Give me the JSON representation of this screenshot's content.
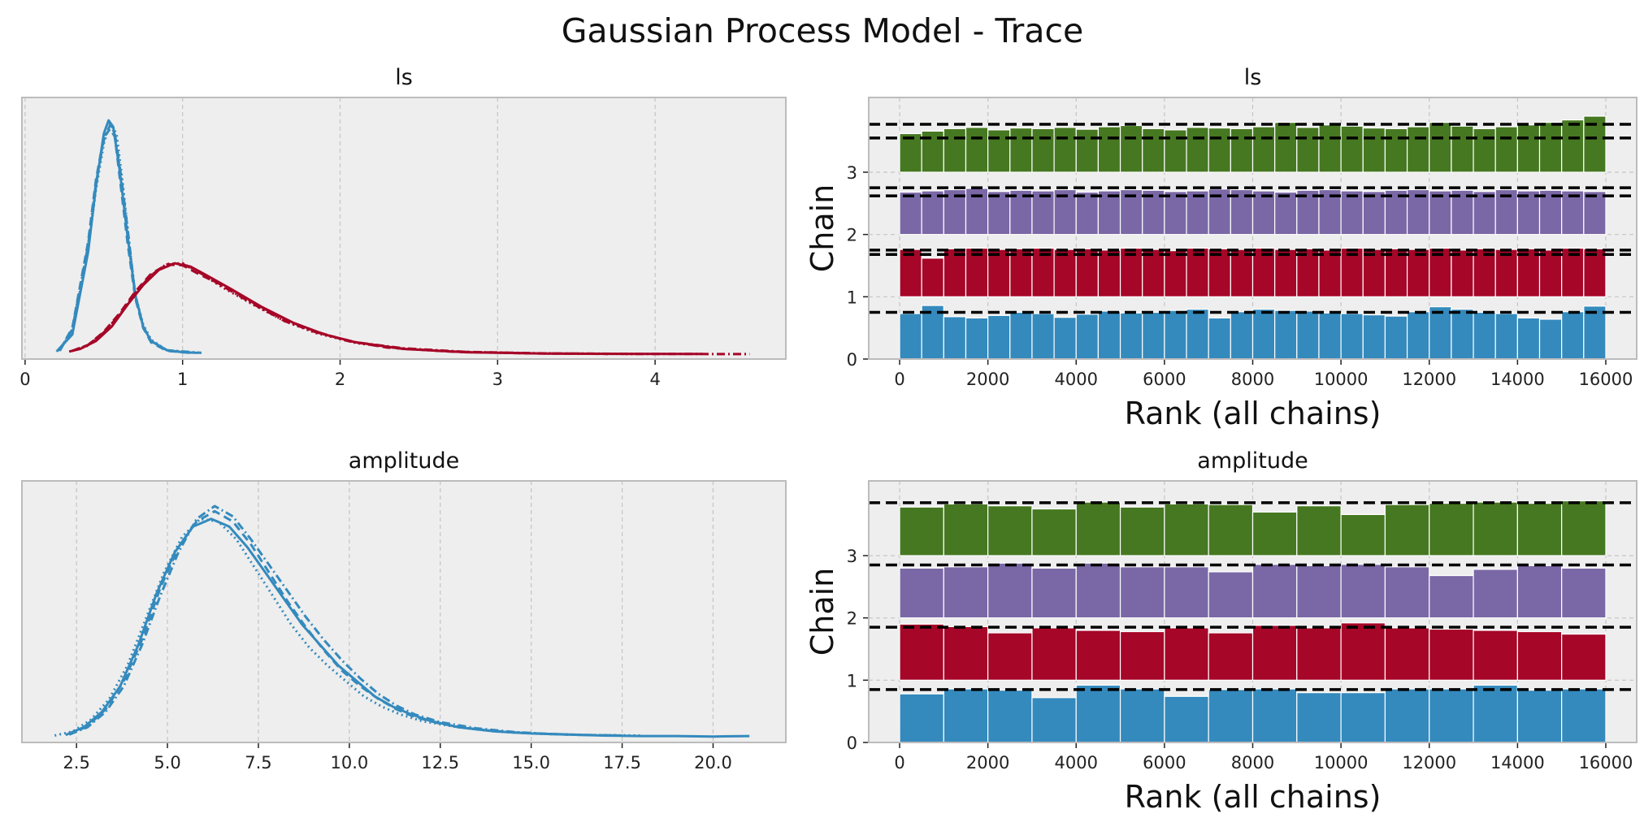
{
  "figure": {
    "title": "Gaussian Process Model - Trace"
  },
  "colors": {
    "panel_bg": "#eeeeee",
    "grid": "#c4c4c4",
    "frame": "#bcbcbc",
    "chain0": "#348abd",
    "chain1": "#a60628",
    "chain2": "#7a68a6",
    "chain3": "#467821",
    "ref_line": "#000000"
  },
  "chart_data": [
    {
      "type": "line",
      "title": "ls",
      "xlim": [
        -0.02,
        4.83
      ],
      "xticks": [
        0,
        1,
        2,
        3,
        4
      ],
      "xtick_labels": [
        "0",
        "1",
        "2",
        "3",
        "4"
      ],
      "grid": true,
      "series": [
        {
          "color": "#348abd",
          "dash": "solid",
          "x": [
            0.2,
            0.3,
            0.4,
            0.45,
            0.5,
            0.53,
            0.56,
            0.6,
            0.65,
            0.7,
            0.75,
            0.8,
            0.9,
            1.0,
            1.1
          ],
          "y": [
            0.04,
            0.3,
            1.55,
            2.55,
            3.35,
            3.55,
            3.45,
            2.8,
            1.8,
            0.9,
            0.42,
            0.2,
            0.06,
            0.03,
            0.02
          ]
        },
        {
          "color": "#348abd",
          "dash": "dashed",
          "x": [
            0.22,
            0.3,
            0.4,
            0.45,
            0.5,
            0.54,
            0.57,
            0.6,
            0.65,
            0.7,
            0.75,
            0.8,
            0.9,
            1.05
          ],
          "y": [
            0.06,
            0.4,
            1.7,
            2.65,
            3.3,
            3.42,
            3.3,
            2.7,
            1.7,
            0.85,
            0.4,
            0.18,
            0.05,
            0.02
          ]
        },
        {
          "color": "#348abd",
          "dash": "dotted",
          "x": [
            0.21,
            0.3,
            0.4,
            0.45,
            0.5,
            0.54,
            0.58,
            0.62,
            0.66,
            0.7,
            0.75,
            0.8,
            0.9,
            1.05
          ],
          "y": [
            0.05,
            0.35,
            1.6,
            2.5,
            3.2,
            3.5,
            3.35,
            2.6,
            1.7,
            0.9,
            0.45,
            0.22,
            0.06,
            0.02
          ]
        },
        {
          "color": "#348abd",
          "dash": "dashdot",
          "x": [
            0.22,
            0.3,
            0.4,
            0.45,
            0.5,
            0.54,
            0.57,
            0.61,
            0.66,
            0.7,
            0.75,
            0.8,
            0.9,
            1.12
          ],
          "y": [
            0.05,
            0.38,
            1.65,
            2.6,
            3.25,
            3.48,
            3.35,
            2.7,
            1.72,
            0.88,
            0.42,
            0.2,
            0.06,
            0.02
          ]
        },
        {
          "color": "#a60628",
          "dash": "solid",
          "x": [
            0.28,
            0.35,
            0.45,
            0.55,
            0.65,
            0.75,
            0.85,
            0.95,
            1.05,
            1.15,
            1.3,
            1.5,
            1.7,
            1.9,
            2.1,
            2.4,
            2.8,
            3.3,
            3.8,
            4.3
          ],
          "y": [
            0.04,
            0.08,
            0.2,
            0.42,
            0.75,
            1.05,
            1.28,
            1.38,
            1.33,
            1.2,
            1.0,
            0.72,
            0.48,
            0.3,
            0.18,
            0.08,
            0.03,
            0.01,
            0.005,
            0.002
          ]
        },
        {
          "color": "#a60628",
          "dash": "dashed",
          "x": [
            0.3,
            0.4,
            0.5,
            0.6,
            0.7,
            0.8,
            0.9,
            1.0,
            1.1,
            1.25,
            1.45,
            1.65,
            1.85,
            2.05,
            2.3,
            2.7,
            3.2,
            3.7
          ],
          "y": [
            0.05,
            0.14,
            0.34,
            0.62,
            0.95,
            1.22,
            1.36,
            1.35,
            1.22,
            1.05,
            0.78,
            0.52,
            0.34,
            0.2,
            0.1,
            0.04,
            0.012,
            0.004
          ]
        },
        {
          "color": "#a60628",
          "dash": "dotted",
          "x": [
            0.3,
            0.4,
            0.5,
            0.6,
            0.7,
            0.8,
            0.9,
            1.0,
            1.1,
            1.25,
            1.45,
            1.65,
            1.85,
            2.1,
            2.4,
            2.8,
            3.3,
            3.9
          ],
          "y": [
            0.05,
            0.13,
            0.32,
            0.6,
            0.92,
            1.2,
            1.37,
            1.38,
            1.25,
            1.02,
            0.75,
            0.5,
            0.32,
            0.17,
            0.08,
            0.03,
            0.01,
            0.003
          ]
        },
        {
          "color": "#a60628",
          "dash": "dashdot",
          "x": [
            0.3,
            0.4,
            0.5,
            0.6,
            0.7,
            0.8,
            0.9,
            1.0,
            1.1,
            1.25,
            1.45,
            1.65,
            1.85,
            2.1,
            2.4,
            2.8,
            3.3,
            3.9,
            4.6
          ],
          "y": [
            0.05,
            0.14,
            0.33,
            0.6,
            0.93,
            1.2,
            1.36,
            1.37,
            1.25,
            1.04,
            0.76,
            0.5,
            0.33,
            0.18,
            0.09,
            0.035,
            0.012,
            0.004,
            0.001
          ]
        }
      ]
    },
    {
      "type": "bar",
      "title": "ls",
      "xlabel": "Rank (all chains)",
      "ylabel": "Chain",
      "xlim": [
        -700,
        16700
      ],
      "ylim": [
        0,
        4.2
      ],
      "xticks": [
        0,
        2000,
        4000,
        6000,
        8000,
        10000,
        12000,
        14000,
        16000
      ],
      "xtick_labels": [
        "0",
        "2000",
        "4000",
        "6000",
        "8000",
        "10000",
        "12000",
        "14000",
        "16000"
      ],
      "yticks": [
        0,
        1,
        2,
        3
      ],
      "ytick_labels": [
        "0",
        "1",
        "2",
        "3"
      ],
      "grid": true,
      "bin_range": [
        0,
        16000
      ],
      "ref_lines": [
        0.75,
        1.68,
        1.75,
        2.62,
        2.75,
        3.55,
        3.77
      ],
      "chains": [
        {
          "chain": 0,
          "color": "#348abd",
          "values": [
            0.73,
            0.86,
            0.68,
            0.66,
            0.7,
            0.75,
            0.73,
            0.67,
            0.72,
            0.77,
            0.74,
            0.75,
            0.78,
            0.8,
            0.66,
            0.76,
            0.8,
            0.78,
            0.77,
            0.74,
            0.73,
            0.71,
            0.69,
            0.76,
            0.84,
            0.8,
            0.75,
            0.73,
            0.66,
            0.64,
            0.76,
            0.85
          ]
        },
        {
          "chain": 1,
          "color": "#a60628",
          "values": [
            0.76,
            0.62,
            0.77,
            0.78,
            0.76,
            0.77,
            0.78,
            0.76,
            0.77,
            0.75,
            0.78,
            0.76,
            0.74,
            0.78,
            0.77,
            0.76,
            0.78,
            0.76,
            0.77,
            0.75,
            0.78,
            0.76,
            0.77,
            0.76,
            0.78,
            0.75,
            0.77,
            0.76,
            0.77,
            0.75,
            0.78,
            0.77
          ]
        },
        {
          "chain": 2,
          "color": "#7a68a6",
          "values": [
            0.68,
            0.7,
            0.72,
            0.74,
            0.69,
            0.71,
            0.7,
            0.72,
            0.68,
            0.7,
            0.72,
            0.71,
            0.69,
            0.7,
            0.73,
            0.72,
            0.7,
            0.68,
            0.71,
            0.72,
            0.7,
            0.69,
            0.71,
            0.72,
            0.7,
            0.71,
            0.69,
            0.72,
            0.7,
            0.71,
            0.7,
            0.69
          ]
        },
        {
          "chain": 3,
          "color": "#467821",
          "values": [
            0.62,
            0.66,
            0.7,
            0.72,
            0.68,
            0.71,
            0.7,
            0.72,
            0.69,
            0.73,
            0.75,
            0.7,
            0.68,
            0.72,
            0.71,
            0.7,
            0.73,
            0.8,
            0.72,
            0.76,
            0.74,
            0.71,
            0.7,
            0.73,
            0.8,
            0.74,
            0.7,
            0.73,
            0.76,
            0.8,
            0.84,
            0.9
          ]
        }
      ]
    },
    {
      "type": "line",
      "title": "amplitude",
      "xlim": [
        1.0,
        22.0
      ],
      "xticks": [
        2.5,
        5.0,
        7.5,
        10.0,
        12.5,
        15.0,
        17.5,
        20.0
      ],
      "xtick_labels": [
        "2.5",
        "5.0",
        "7.5",
        "10.0",
        "12.5",
        "15.0",
        "17.5",
        "20.0"
      ],
      "grid": true,
      "series": [
        {
          "color": "#348abd",
          "dash": "solid",
          "x": [
            2.2,
            2.7,
            3.2,
            3.7,
            4.2,
            4.7,
            5.2,
            5.7,
            6.2,
            6.7,
            7.2,
            7.7,
            8.2,
            8.7,
            9.2,
            9.7,
            10.2,
            10.7,
            11.2,
            11.7,
            12.2,
            13,
            14,
            15,
            16,
            17,
            18,
            19,
            20,
            21
          ],
          "y": [
            0.005,
            0.02,
            0.05,
            0.1,
            0.18,
            0.28,
            0.36,
            0.41,
            0.425,
            0.41,
            0.37,
            0.32,
            0.27,
            0.22,
            0.18,
            0.14,
            0.11,
            0.08,
            0.06,
            0.045,
            0.033,
            0.02,
            0.012,
            0.008,
            0.006,
            0.004,
            0.003,
            0.003,
            0.002,
            0.003
          ]
        },
        {
          "color": "#348abd",
          "dash": "dashed",
          "x": [
            2.3,
            2.8,
            3.3,
            3.8,
            4.3,
            4.8,
            5.3,
            5.8,
            6.3,
            6.8,
            7.3,
            7.8,
            8.3,
            8.8,
            9.3,
            9.8,
            10.3,
            10.8,
            11.3,
            11.8,
            12.5,
            13.5,
            14.5,
            15.5,
            16.5,
            17.5
          ],
          "y": [
            0.006,
            0.022,
            0.055,
            0.11,
            0.19,
            0.29,
            0.37,
            0.42,
            0.44,
            0.42,
            0.375,
            0.32,
            0.265,
            0.215,
            0.17,
            0.13,
            0.1,
            0.075,
            0.055,
            0.04,
            0.027,
            0.016,
            0.01,
            0.007,
            0.005,
            0.004
          ]
        },
        {
          "color": "#348abd",
          "dash": "dotted",
          "x": [
            1.9,
            2.4,
            2.9,
            3.4,
            3.9,
            4.4,
            4.9,
            5.4,
            5.9,
            6.4,
            6.9,
            7.4,
            7.9,
            8.4,
            8.9,
            9.4,
            9.9,
            10.4,
            10.9,
            11.4,
            12,
            13,
            14,
            15,
            16.5,
            18
          ],
          "y": [
            0.004,
            0.012,
            0.035,
            0.075,
            0.14,
            0.23,
            0.32,
            0.39,
            0.425,
            0.42,
            0.385,
            0.33,
            0.275,
            0.22,
            0.175,
            0.14,
            0.11,
            0.08,
            0.06,
            0.045,
            0.032,
            0.02,
            0.012,
            0.008,
            0.005,
            0.004
          ]
        },
        {
          "color": "#348abd",
          "dash": "dashdot",
          "x": [
            2.3,
            2.8,
            3.3,
            3.8,
            4.3,
            4.8,
            5.3,
            5.8,
            6.3,
            6.8,
            7.3,
            7.8,
            8.3,
            8.8,
            9.3,
            9.8,
            10.3,
            10.8,
            11.3,
            11.8,
            12.5,
            13.5,
            14.5,
            15.5,
            16.5,
            17.5
          ],
          "y": [
            0.006,
            0.02,
            0.05,
            0.1,
            0.18,
            0.275,
            0.36,
            0.425,
            0.45,
            0.43,
            0.385,
            0.335,
            0.285,
            0.235,
            0.19,
            0.15,
            0.115,
            0.085,
            0.062,
            0.045,
            0.03,
            0.018,
            0.011,
            0.007,
            0.005,
            0.004
          ]
        }
      ]
    },
    {
      "type": "bar",
      "title": "amplitude",
      "xlabel": "Rank (all chains)",
      "ylabel": "Chain",
      "xlim": [
        -700,
        16700
      ],
      "ylim": [
        0,
        4.2
      ],
      "xticks": [
        0,
        2000,
        4000,
        6000,
        8000,
        10000,
        12000,
        14000,
        16000
      ],
      "xtick_labels": [
        "0",
        "2000",
        "4000",
        "6000",
        "8000",
        "10000",
        "12000",
        "14000",
        "16000"
      ],
      "yticks": [
        0,
        1,
        2,
        3
      ],
      "ytick_labels": [
        "0",
        "1",
        "2",
        "3"
      ],
      "grid": true,
      "bin_range": [
        0,
        16000
      ],
      "ref_lines": [
        0.85,
        1.85,
        2.85,
        3.85
      ],
      "chains": [
        {
          "chain": 0,
          "color": "#348abd",
          "values": [
            0.78,
            0.86,
            0.84,
            0.72,
            0.92,
            0.86,
            0.74,
            0.85,
            0.86,
            0.8,
            0.8,
            0.86,
            0.86,
            0.92,
            0.84,
            0.86
          ]
        },
        {
          "chain": 1,
          "color": "#a60628",
          "values": [
            0.9,
            0.86,
            0.76,
            0.84,
            0.8,
            0.78,
            0.84,
            0.76,
            0.88,
            0.84,
            0.92,
            0.84,
            0.82,
            0.8,
            0.78,
            0.74
          ]
        },
        {
          "chain": 2,
          "color": "#7a68a6",
          "values": [
            0.8,
            0.82,
            0.88,
            0.8,
            0.88,
            0.82,
            0.82,
            0.74,
            0.86,
            0.84,
            0.86,
            0.82,
            0.68,
            0.78,
            0.84,
            0.8
          ]
        },
        {
          "chain": 3,
          "color": "#467821",
          "values": [
            0.78,
            0.83,
            0.8,
            0.75,
            0.86,
            0.78,
            0.83,
            0.82,
            0.7,
            0.8,
            0.66,
            0.82,
            0.84,
            0.86,
            0.84,
            0.88
          ]
        }
      ]
    }
  ]
}
